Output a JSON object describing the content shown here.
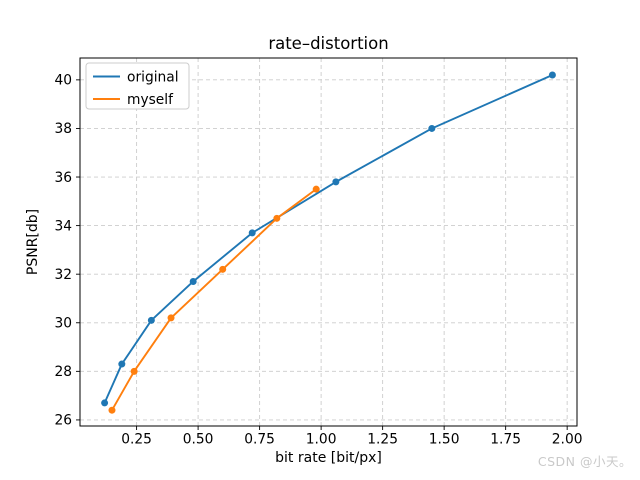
{
  "figure": {
    "title": "rate–distortion",
    "watermark": "CSDN @小天。"
  },
  "chart_data": {
    "type": "line",
    "title": "rate–distortion",
    "xlabel": "bit rate [bit/px]",
    "ylabel": "PSNR[db]",
    "xlim": [
      0.02,
      2.04
    ],
    "ylim": [
      25.75,
      40.9
    ],
    "x_ticks": [
      0.25,
      0.5,
      0.75,
      1.0,
      1.25,
      1.5,
      1.75,
      2.0
    ],
    "x_tick_labels": [
      "0.25",
      "0.50",
      "0.75",
      "1.00",
      "1.25",
      "1.50",
      "1.75",
      "2.00"
    ],
    "y_ticks": [
      26,
      28,
      30,
      32,
      34,
      36,
      38,
      40
    ],
    "y_tick_labels": [
      "26",
      "28",
      "30",
      "32",
      "34",
      "36",
      "38",
      "40"
    ],
    "grid": true,
    "grid_style": "dashed",
    "legend_position": "upper left",
    "series": [
      {
        "name": "original",
        "color": "#1f77b4",
        "marker": "circle",
        "x": [
          0.12,
          0.19,
          0.31,
          0.48,
          0.72,
          1.06,
          1.45,
          1.94
        ],
        "y": [
          26.7,
          28.3,
          30.1,
          31.7,
          33.7,
          35.8,
          38.0,
          40.2
        ]
      },
      {
        "name": "myself",
        "color": "#ff7f0e",
        "marker": "circle",
        "x": [
          0.15,
          0.24,
          0.39,
          0.6,
          0.82,
          0.98
        ],
        "y": [
          26.4,
          28.0,
          30.2,
          32.2,
          34.3,
          35.5
        ]
      }
    ],
    "colors": {
      "background": "#ffffff",
      "grid": "#cccccc",
      "axis": "#000000",
      "text": "#000000",
      "legend_border": "#cccccc",
      "watermark": "#c9c9c9"
    }
  }
}
